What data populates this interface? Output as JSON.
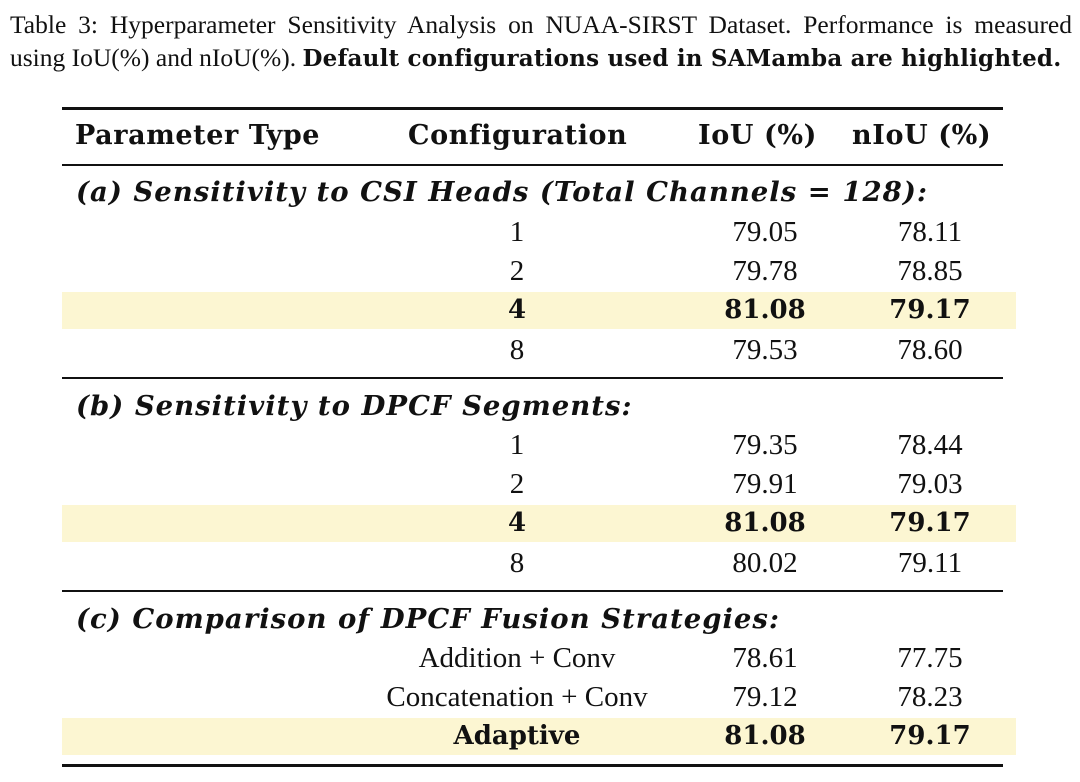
{
  "caption": {
    "normal": "Table 3: Hyperparameter Sensitivity Analysis on NUAA-SIRST Dataset. Performance is measured using IoU(%) and nIoU(%).",
    "bold": "Default configurations used in SAMamba are highlighted."
  },
  "table": {
    "headers": {
      "parameter_type": "Parameter Type",
      "configuration": "Configuration",
      "iou": "IoU (%)",
      "niou": "nIoU (%)"
    },
    "sections": [
      {
        "title": "(a) Sensitivity to CSI Heads (Total Channels = 128):",
        "rows": [
          {
            "config": "1",
            "iou": "79.05",
            "niou": "78.11"
          },
          {
            "config": "2",
            "iou": "79.78",
            "niou": "78.85"
          },
          {
            "config": "4",
            "iou": "81.08",
            "niou": "79.17"
          },
          {
            "config": "8",
            "iou": "79.53",
            "niou": "78.60"
          }
        ]
      },
      {
        "title": "(b) Sensitivity to DPCF Segments:",
        "rows": [
          {
            "config": "1",
            "iou": "79.35",
            "niou": "78.44"
          },
          {
            "config": "2",
            "iou": "79.91",
            "niou": "79.03"
          },
          {
            "config": "4",
            "iou": "81.08",
            "niou": "79.17"
          },
          {
            "config": "8",
            "iou": "80.02",
            "niou": "79.11"
          }
        ]
      },
      {
        "title": "(c) Comparison of DPCF Fusion Strategies:",
        "rows": [
          {
            "config": "Addition + Conv",
            "iou": "78.61",
            "niou": "77.75"
          },
          {
            "config": "Concatenation + Conv",
            "iou": "79.12",
            "niou": "78.23"
          },
          {
            "config": "Adaptive",
            "iou": "81.08",
            "niou": "79.17"
          }
        ]
      }
    ]
  },
  "colors": {
    "highlight": "#fcf6d2",
    "text": "#111111"
  }
}
